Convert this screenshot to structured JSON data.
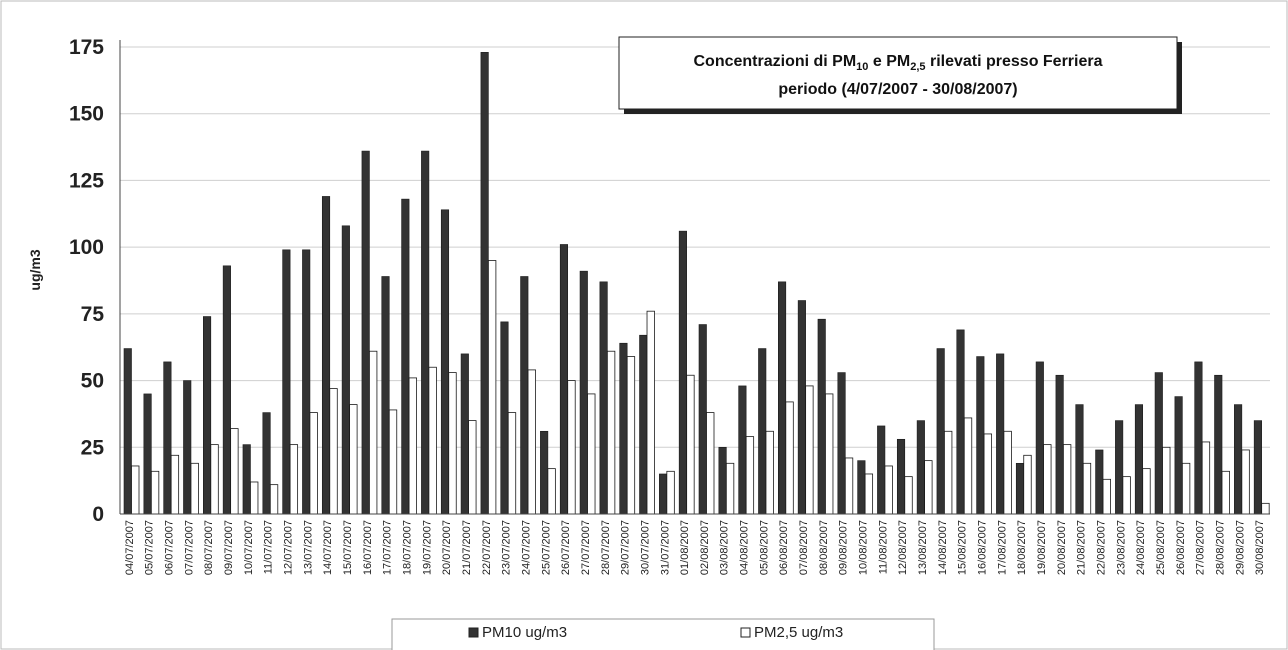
{
  "chart_data": {
    "type": "bar",
    "title_line1_parts": [
      "Concentrazioni di PM",
      "10",
      " e PM",
      "2,5",
      " rilevati presso Ferriera"
    ],
    "title_line2": "periodo (4/07/2007 - 30/08/2007)",
    "xlabel": "",
    "ylabel": "ug/m3",
    "ylim": [
      0,
      175
    ],
    "yticks": [
      0,
      25,
      50,
      75,
      100,
      125,
      150,
      175
    ],
    "grid": true,
    "legend_position": "bottom",
    "categories": [
      "04/07/2007",
      "05/07/2007",
      "06/07/2007",
      "07/07/2007",
      "08/07/2007",
      "09/07/2007",
      "10/07/2007",
      "11/07/2007",
      "12/07/2007",
      "13/07/2007",
      "14/07/2007",
      "15/07/2007",
      "16/07/2007",
      "17/07/2007",
      "18/07/2007",
      "19/07/2007",
      "20/07/2007",
      "21/07/2007",
      "22/07/2007",
      "23/07/2007",
      "24/07/2007",
      "25/07/2007",
      "26/07/2007",
      "27/07/2007",
      "28/07/2007",
      "29/07/2007",
      "30/07/2007",
      "31/07/2007",
      "01/08/2007",
      "02/08/2007",
      "03/08/2007",
      "04/08/2007",
      "05/08/2007",
      "06/08/2007",
      "07/08/2007",
      "08/08/2007",
      "09/08/2007",
      "10/08/2007",
      "11/08/2007",
      "12/08/2007",
      "13/08/2007",
      "14/08/2007",
      "15/08/2007",
      "16/08/2007",
      "17/08/2007",
      "18/08/2007",
      "19/08/2007",
      "20/08/2007",
      "21/08/2007",
      "22/08/2007",
      "23/08/2007",
      "24/08/2007",
      "25/08/2007",
      "26/08/2007",
      "27/08/2007",
      "28/08/2007",
      "29/08/2007",
      "30/08/2007"
    ],
    "series": [
      {
        "name": "PM10 ug/m3",
        "color": "#333333",
        "values": [
          62,
          45,
          57,
          50,
          74,
          93,
          26,
          38,
          99,
          99,
          119,
          108,
          136,
          89,
          118,
          136,
          114,
          60,
          173,
          72,
          89,
          31,
          101,
          91,
          87,
          64,
          67,
          15,
          106,
          71,
          25,
          48,
          62,
          87,
          80,
          73,
          53,
          20,
          33,
          28,
          35,
          62,
          69,
          59,
          60,
          19,
          57,
          52,
          41,
          24,
          35,
          41,
          53,
          44,
          57,
          52,
          41,
          35
        ]
      },
      {
        "name": "PM2,5 ug/m3",
        "color": "#ffffff",
        "values": [
          18,
          16,
          22,
          19,
          26,
          32,
          12,
          11,
          26,
          38,
          47,
          41,
          61,
          39,
          51,
          55,
          53,
          35,
          95,
          38,
          54,
          17,
          50,
          45,
          61,
          59,
          76,
          16,
          52,
          38,
          19,
          29,
          31,
          42,
          48,
          45,
          21,
          15,
          18,
          14,
          20,
          31,
          36,
          30,
          31,
          22,
          26,
          26,
          19,
          13,
          14,
          17,
          25,
          19,
          27,
          16,
          24,
          4
        ]
      }
    ]
  },
  "legend": {
    "pm10_label": "PM10 ug/m3",
    "pm25_label": "PM2,5 ug/m3"
  }
}
